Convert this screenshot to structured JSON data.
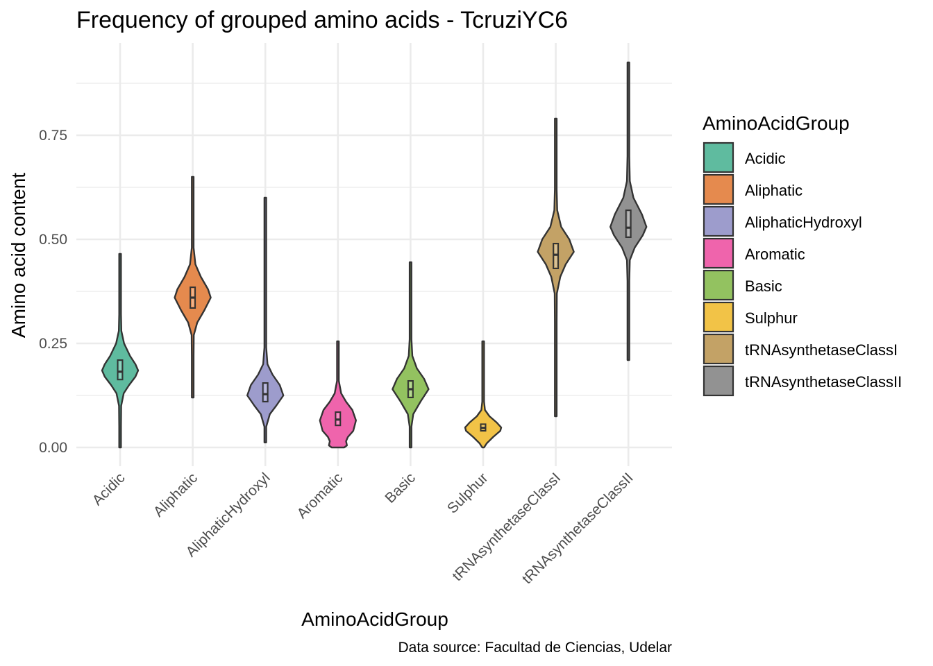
{
  "chart_data": {
    "type": "violin",
    "title": "Frequency of grouped amino acids - TcruziYC6",
    "xlabel": "AminoAcidGroup",
    "ylabel": "Amino acid content",
    "caption": "Data source: Facultad de Ciencias, Udelar",
    "ylim": [
      -0.04,
      0.96
    ],
    "yticks": [
      0.0,
      0.25,
      0.5,
      0.75
    ],
    "ytick_labels": [
      "0.00",
      "0.25",
      "0.50",
      "0.75"
    ],
    "grid": true,
    "legend_title": "AminoAcidGroup",
    "legend_position": "right",
    "categories": [
      "Acidic",
      "Aliphatic",
      "AliphaticHydroxyl",
      "Aromatic",
      "Basic",
      "Sulphur",
      "tRNAsynthetaseClassI",
      "tRNAsynthetaseClassII"
    ],
    "colors": [
      "#5fbb9f",
      "#e58a4e",
      "#9d9ccc",
      "#ef64ac",
      "#93c260",
      "#f2c347",
      "#c3a266",
      "#929292"
    ],
    "series": [
      {
        "category": "Acidic",
        "min": 0.0,
        "max": 0.465,
        "q1": 0.163,
        "median": 0.182,
        "q3": 0.21,
        "density": [
          [
            0.0,
            0.0
          ],
          [
            0.05,
            0.015
          ],
          [
            0.1,
            0.06
          ],
          [
            0.13,
            0.2
          ],
          [
            0.15,
            0.5
          ],
          [
            0.17,
            0.85
          ],
          [
            0.185,
            1.0
          ],
          [
            0.2,
            0.85
          ],
          [
            0.22,
            0.55
          ],
          [
            0.25,
            0.22
          ],
          [
            0.28,
            0.07
          ],
          [
            0.32,
            0.02
          ],
          [
            0.4,
            0.0
          ],
          [
            0.465,
            0.0
          ]
        ]
      },
      {
        "category": "Aliphatic",
        "min": 0.12,
        "max": 0.65,
        "q1": 0.335,
        "median": 0.36,
        "q3": 0.385,
        "density": [
          [
            0.12,
            0.0
          ],
          [
            0.22,
            0.01
          ],
          [
            0.27,
            0.06
          ],
          [
            0.3,
            0.25
          ],
          [
            0.33,
            0.65
          ],
          [
            0.36,
            1.0
          ],
          [
            0.38,
            0.85
          ],
          [
            0.41,
            0.45
          ],
          [
            0.44,
            0.15
          ],
          [
            0.48,
            0.05
          ],
          [
            0.55,
            0.01
          ],
          [
            0.65,
            0.0
          ]
        ]
      },
      {
        "category": "AliphaticHydroxyl",
        "min": 0.012,
        "max": 0.6,
        "q1": 0.11,
        "median": 0.128,
        "q3": 0.155,
        "density": [
          [
            0.012,
            0.0
          ],
          [
            0.05,
            0.05
          ],
          [
            0.08,
            0.25
          ],
          [
            0.1,
            0.6
          ],
          [
            0.125,
            1.0
          ],
          [
            0.15,
            0.8
          ],
          [
            0.175,
            0.4
          ],
          [
            0.2,
            0.12
          ],
          [
            0.24,
            0.03
          ],
          [
            0.3,
            0.01
          ],
          [
            0.6,
            0.0
          ]
        ]
      },
      {
        "category": "Aromatic",
        "min": 0.0,
        "max": 0.255,
        "q1": 0.053,
        "median": 0.067,
        "q3": 0.085,
        "density": [
          [
            0.0,
            0.35
          ],
          [
            0.005,
            0.5
          ],
          [
            0.015,
            0.45
          ],
          [
            0.025,
            0.55
          ],
          [
            0.04,
            0.85
          ],
          [
            0.065,
            1.0
          ],
          [
            0.09,
            0.8
          ],
          [
            0.11,
            0.45
          ],
          [
            0.13,
            0.18
          ],
          [
            0.16,
            0.05
          ],
          [
            0.2,
            0.01
          ],
          [
            0.255,
            0.0
          ]
        ]
      },
      {
        "category": "Basic",
        "min": 0.0,
        "max": 0.445,
        "q1": 0.12,
        "median": 0.14,
        "q3": 0.16,
        "density": [
          [
            0.0,
            0.0
          ],
          [
            0.05,
            0.03
          ],
          [
            0.08,
            0.15
          ],
          [
            0.11,
            0.55
          ],
          [
            0.14,
            1.0
          ],
          [
            0.165,
            0.75
          ],
          [
            0.19,
            0.35
          ],
          [
            0.22,
            0.1
          ],
          [
            0.26,
            0.02
          ],
          [
            0.35,
            0.0
          ],
          [
            0.445,
            0.0
          ]
        ]
      },
      {
        "category": "Sulphur",
        "min": 0.0,
        "max": 0.255,
        "q1": 0.04,
        "median": 0.047,
        "q3": 0.056,
        "density": [
          [
            0.0,
            0.05
          ],
          [
            0.01,
            0.2
          ],
          [
            0.025,
            0.55
          ],
          [
            0.04,
            0.95
          ],
          [
            0.048,
            1.0
          ],
          [
            0.06,
            0.75
          ],
          [
            0.075,
            0.35
          ],
          [
            0.09,
            0.1
          ],
          [
            0.11,
            0.03
          ],
          [
            0.14,
            0.01
          ],
          [
            0.2,
            0.0
          ],
          [
            0.255,
            0.0
          ]
        ]
      },
      {
        "category": "tRNAsynthetaseClassI",
        "min": 0.075,
        "max": 0.79,
        "q1": 0.43,
        "median": 0.463,
        "q3": 0.49,
        "density": [
          [
            0.075,
            0.0
          ],
          [
            0.3,
            0.01
          ],
          [
            0.37,
            0.06
          ],
          [
            0.41,
            0.25
          ],
          [
            0.44,
            0.55
          ],
          [
            0.47,
            1.0
          ],
          [
            0.5,
            0.75
          ],
          [
            0.53,
            0.3
          ],
          [
            0.57,
            0.08
          ],
          [
            0.62,
            0.02
          ],
          [
            0.79,
            0.0
          ]
        ]
      },
      {
        "category": "tRNAsynthetaseClassII",
        "min": 0.21,
        "max": 0.925,
        "q1": 0.505,
        "median": 0.528,
        "q3": 0.57,
        "density": [
          [
            0.21,
            0.0
          ],
          [
            0.4,
            0.01
          ],
          [
            0.45,
            0.08
          ],
          [
            0.48,
            0.35
          ],
          [
            0.51,
            0.8
          ],
          [
            0.53,
            1.0
          ],
          [
            0.56,
            0.75
          ],
          [
            0.6,
            0.28
          ],
          [
            0.64,
            0.08
          ],
          [
            0.7,
            0.02
          ],
          [
            0.925,
            0.0
          ]
        ]
      }
    ]
  }
}
